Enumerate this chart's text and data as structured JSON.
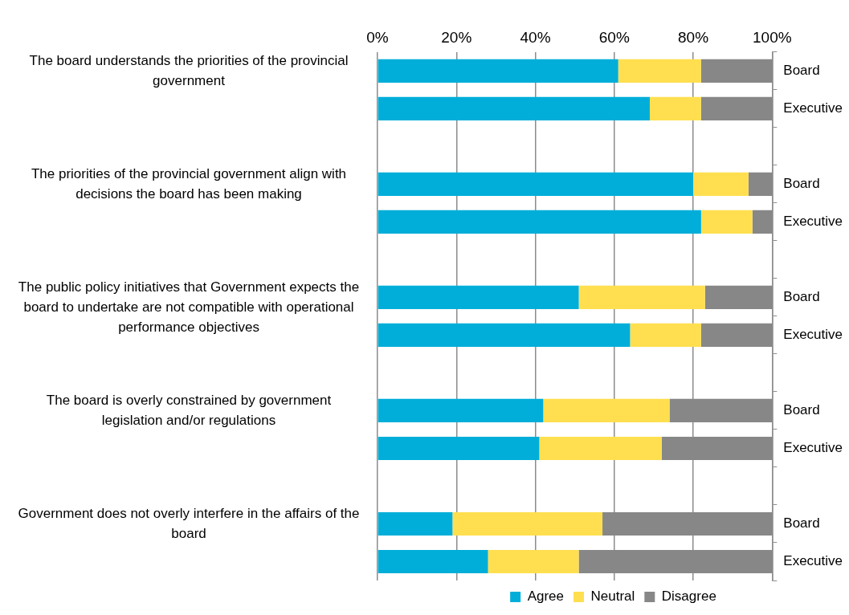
{
  "chart_data": {
    "type": "bar",
    "orientation": "horizontal",
    "stacked": true,
    "categories": [
      "Board",
      "Executive",
      "Board",
      "Executive",
      "Board",
      "Executive",
      "Board",
      "Executive",
      "Board",
      "Executive"
    ],
    "series": [
      {
        "name": "Agree",
        "color": "#00aed9",
        "values": [
          61,
          69,
          80,
          82,
          51,
          64,
          42,
          41,
          19,
          28
        ]
      },
      {
        "name": "Neutral",
        "color": "#ffdf4f",
        "values": [
          21,
          13,
          14,
          13,
          32,
          18,
          32,
          31,
          38,
          23
        ]
      },
      {
        "name": "Disagree",
        "color": "#878787",
        "values": [
          18,
          18,
          6,
          5,
          17,
          18,
          26,
          28,
          43,
          49
        ]
      }
    ],
    "annotations": [
      "The board understands the priorities of the provincial government",
      "The priorities of the provincial government align with decisions the board has been making",
      "The public policy initiatives that Government expects the board to undertake are not compatible with operational performance objectives",
      "The board is overly constrained by government legislation and/or regulations",
      "Government does not overly interfere in the affairs of the board"
    ],
    "xlim": [
      0,
      100
    ],
    "xticks": [
      {
        "value": 0,
        "label": "0%"
      },
      {
        "value": 20,
        "label": "20%"
      },
      {
        "value": 40,
        "label": "40%"
      },
      {
        "value": 60,
        "label": "60%"
      },
      {
        "value": 80,
        "label": "80%"
      },
      {
        "value": 100,
        "label": "100%"
      }
    ],
    "grid": "x",
    "legend": "bottom"
  }
}
